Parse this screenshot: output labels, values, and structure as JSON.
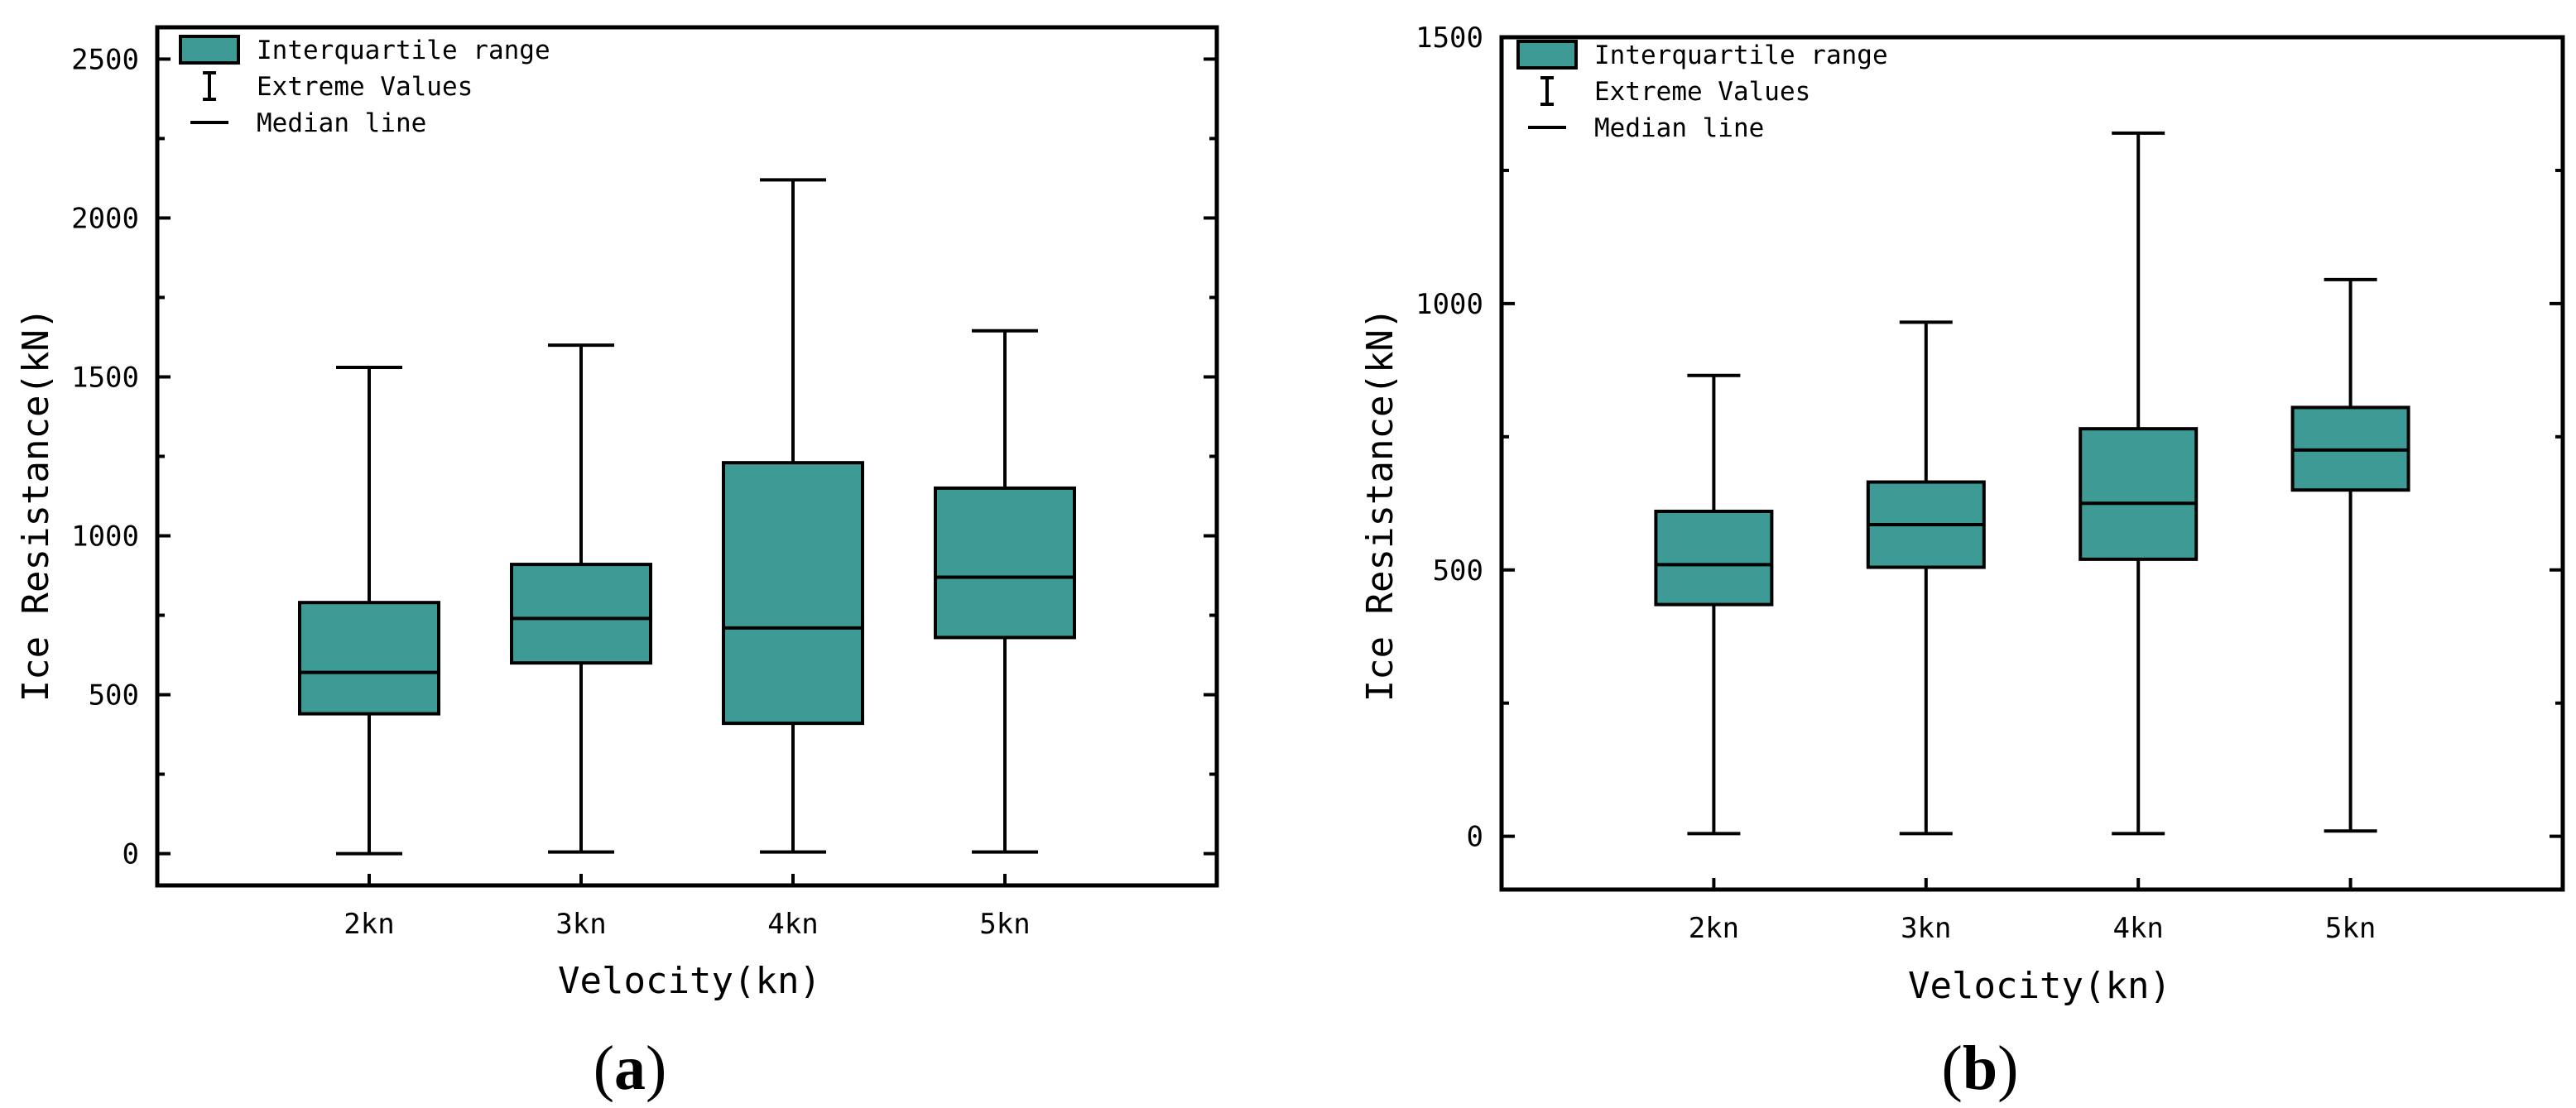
{
  "colors": {
    "box_fill": "#3d9a95",
    "stroke": "#000000"
  },
  "chart_data": [
    {
      "panel": "(a)",
      "panel_paren_open": "(",
      "panel_letter": "a",
      "panel_paren_close": ")",
      "type": "box",
      "title": "",
      "xlabel": "Velocity(kn)",
      "ylabel": "Ice Resistance(kN)",
      "ylim": [
        -100,
        2600
      ],
      "yticks": [
        0,
        500,
        1000,
        1500,
        2000,
        2500
      ],
      "ytick_labels": [
        "0",
        "500",
        "1000",
        "1500",
        "2000",
        "2500"
      ],
      "minor_step": 250,
      "x_slots": 5,
      "categories": [
        "2kn",
        "3kn",
        "4kn",
        "5kn"
      ],
      "boxes": [
        {
          "min": 0,
          "q1": 440,
          "median": 570,
          "q3": 790,
          "max": 1530
        },
        {
          "min": 5,
          "q1": 600,
          "median": 740,
          "q3": 910,
          "max": 1600
        },
        {
          "min": 5,
          "q1": 410,
          "median": 710,
          "q3": 1230,
          "max": 2120
        },
        {
          "min": 5,
          "q1": 680,
          "median": 870,
          "q3": 1150,
          "max": 1645
        }
      ],
      "legend": {
        "position": "top-left",
        "entries": [
          "Interquartile range",
          "Extreme Values",
          "Median line"
        ]
      }
    },
    {
      "panel": "(b)",
      "panel_paren_open": "(",
      "panel_letter": "b",
      "panel_paren_close": ")",
      "type": "box",
      "title": "",
      "xlabel": "Velocity(kn)",
      "ylabel": "Ice Resistance(kN)",
      "ylim": [
        -100,
        1500
      ],
      "yticks": [
        0,
        500,
        1000,
        1500
      ],
      "ytick_labels": [
        "0",
        "500",
        "1000",
        "1500"
      ],
      "minor_step": 250,
      "x_slots": 5,
      "categories": [
        "2kn",
        "3kn",
        "4kn",
        "5kn"
      ],
      "boxes": [
        {
          "min": 5,
          "q1": 435,
          "median": 510,
          "q3": 610,
          "max": 865
        },
        {
          "min": 5,
          "q1": 505,
          "median": 585,
          "q3": 665,
          "max": 965
        },
        {
          "min": 5,
          "q1": 520,
          "median": 625,
          "q3": 765,
          "max": 1320
        },
        {
          "min": 10,
          "q1": 650,
          "median": 725,
          "q3": 805,
          "max": 1045
        }
      ],
      "legend": {
        "position": "top-left",
        "entries": [
          "Interquartile range",
          "Extreme Values",
          "Median line"
        ]
      }
    }
  ]
}
